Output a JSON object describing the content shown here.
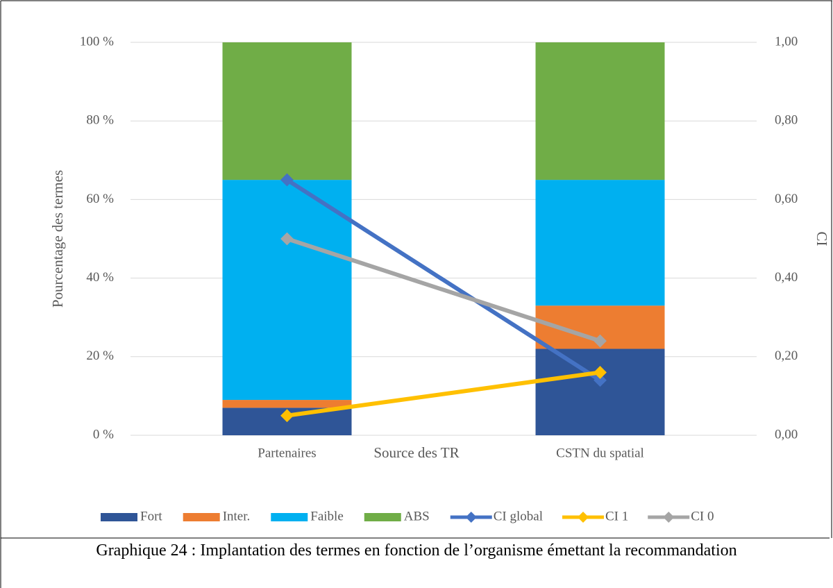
{
  "chart_data": {
    "type": "bar",
    "categories": [
      "Partenaires",
      "CSTN du spatial"
    ],
    "xlabel": "Source des TR",
    "ylabel": "Pourcentage des termes",
    "y2label": "CI",
    "ylim": [
      0,
      100
    ],
    "yticks": [
      {
        "value": 0,
        "label": "0 %"
      },
      {
        "value": 20,
        "label": "20 %"
      },
      {
        "value": 40,
        "label": "40 %"
      },
      {
        "value": 60,
        "label": "60 %"
      },
      {
        "value": 80,
        "label": "80 %"
      },
      {
        "value": 100,
        "label": "100 %"
      }
    ],
    "y2lim": [
      0,
      1
    ],
    "y2ticks": [
      {
        "value": 0,
        "label": "0,00"
      },
      {
        "value": 0.2,
        "label": "0,20"
      },
      {
        "value": 0.4,
        "label": "0,40"
      },
      {
        "value": 0.6,
        "label": "0,60"
      },
      {
        "value": 0.8,
        "label": "0,80"
      },
      {
        "value": 1,
        "label": "1,00"
      }
    ],
    "grid": true,
    "legend": "bottom",
    "series": [
      {
        "name": "Fort",
        "color": "#2f5597",
        "values": [
          7,
          22
        ]
      },
      {
        "name": "Inter.",
        "color": "#ed7d31",
        "values": [
          2,
          11
        ]
      },
      {
        "name": "Faible",
        "color": "#00b0f0",
        "values": [
          56,
          32
        ]
      },
      {
        "name": "ABS",
        "color": "#70ad47",
        "values": [
          35,
          35
        ]
      },
      {
        "name": "CI global",
        "color": "#4472c4",
        "type": "line",
        "axis": "y2",
        "values": [
          0.65,
          0.14
        ]
      },
      {
        "name": "CI 1",
        "color": "#ffc000",
        "type": "line",
        "axis": "y2",
        "values": [
          0.05,
          0.16
        ]
      },
      {
        "name": "CI 0",
        "color": "#a5a5a5",
        "type": "line",
        "axis": "y2",
        "values": [
          0.5,
          0.24
        ]
      }
    ]
  },
  "caption": "Graphique 24 : Implantation des termes en fonction de l’organisme émettant la recommandation"
}
